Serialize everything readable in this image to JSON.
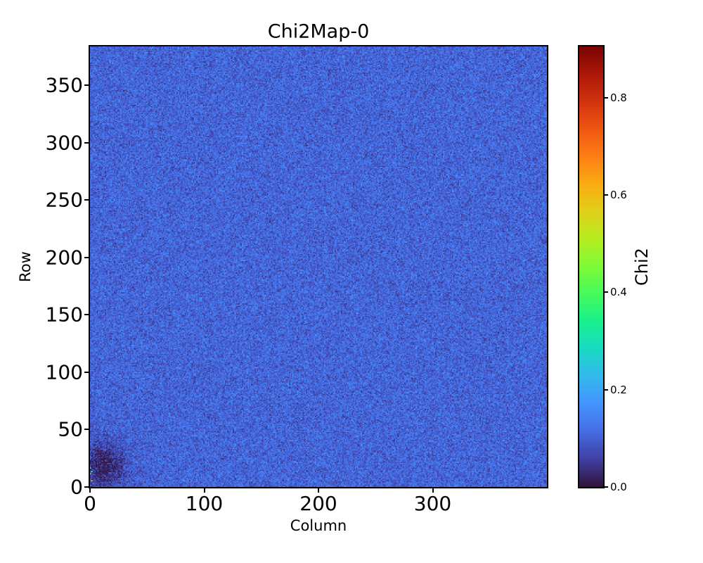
{
  "figure": {
    "background": "#ffffff",
    "text_color": "#000000",
    "spine_color": "#000000"
  },
  "chart_data": {
    "type": "heatmap",
    "title": "Chi2Map-0",
    "xlabel": "Column",
    "ylabel": "Row",
    "colorbar_label": "Chi2",
    "colormap": "turbo",
    "grid": false,
    "legend": "none",
    "xlim": [
      0,
      400
    ],
    "ylim": [
      0,
      384
    ],
    "vmin": 0.0,
    "vmax": 0.905,
    "x_ticks": {
      "values": [
        0,
        100,
        200,
        300
      ],
      "labels": [
        "0",
        "100",
        "200",
        "300"
      ]
    },
    "y_ticks": {
      "values": [
        0,
        50,
        100,
        150,
        200,
        250,
        300,
        350
      ],
      "labels": [
        "0",
        "50",
        "100",
        "150",
        "200",
        "250",
        "300",
        "350"
      ]
    },
    "colorbar_ticks": {
      "values": [
        0.0,
        0.2,
        0.4,
        0.6,
        0.8
      ],
      "labels": [
        "0.0",
        "0.2",
        "0.4",
        "0.6",
        "0.8"
      ]
    },
    "pixel_grid": {
      "cols": 400,
      "rows": 384
    },
    "value_model": {
      "description": "uniform noisy chi2 background with a low-chi2 dark blob in the bottom-left corner and a few bright outlier pixels at the left edge",
      "seed": 1234,
      "background_mean": 0.105,
      "background_std": 0.027,
      "min_value": 0.008,
      "features": [
        {
          "name": "low-chi2-blob-bottom-left",
          "center_col": 12,
          "center_row": 18,
          "sigma_col": 13,
          "sigma_row": 15,
          "depth": 0.085
        }
      ],
      "outlier_pixels": [
        {
          "col": 0,
          "row": 16,
          "value": 0.45
        },
        {
          "col": 0,
          "row": 11,
          "value": 0.5
        },
        {
          "col": 1,
          "row": 13,
          "value": 0.33
        },
        {
          "col": 1,
          "row": 5,
          "value": 0.6
        }
      ]
    },
    "colormap_stops": [
      "#30123b",
      "#4040a2",
      "#466be3",
      "#4494ff",
      "#33b8ed",
      "#1ad9c4",
      "#18f18d",
      "#45fa5c",
      "#7efa38",
      "#b4ed20",
      "#dfd019",
      "#f9ac12",
      "#fd7f14",
      "#ef5612",
      "#d2330d",
      "#ac1807",
      "#7a0403"
    ]
  }
}
